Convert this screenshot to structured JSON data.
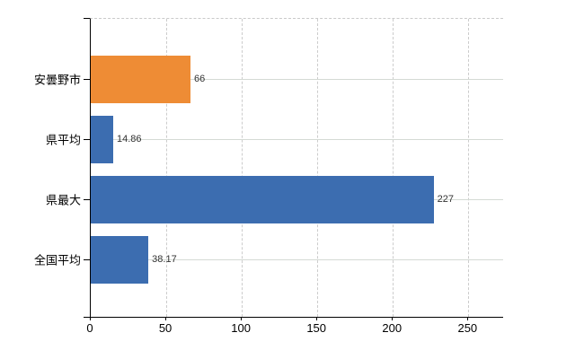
{
  "chart_data": {
    "type": "bar",
    "orientation": "horizontal",
    "title": "",
    "xlabel": "",
    "ylabel": "",
    "legend": "none",
    "categories": [
      "安曇野市",
      "県平均",
      "県最大",
      "全国平均"
    ],
    "values": [
      66,
      14.86,
      227,
      38.17
    ],
    "value_labels": [
      "66",
      "14.86",
      "227",
      "38.17"
    ],
    "bar_colors": [
      "#EE8C35",
      "#3C6DB0",
      "#3C6DB0",
      "#3C6DB0"
    ],
    "x_ticks": [
      0,
      50,
      100,
      150,
      200,
      250
    ],
    "x_tick_labels": [
      "0",
      "50",
      "100",
      "150",
      "200",
      "250"
    ],
    "xlim": [
      0,
      273
    ],
    "grid": {
      "vertical": "dashed",
      "horizontal": "solid"
    }
  },
  "colors": {
    "bar_highlight": "#EE8C35",
    "bar_default": "#3C6DB0",
    "axis": "#000000",
    "grid_vertical": "#CCCCCC",
    "grid_horizontal": "#D4DAD4",
    "value_label": "#333333",
    "background": "#FFFFFF"
  }
}
